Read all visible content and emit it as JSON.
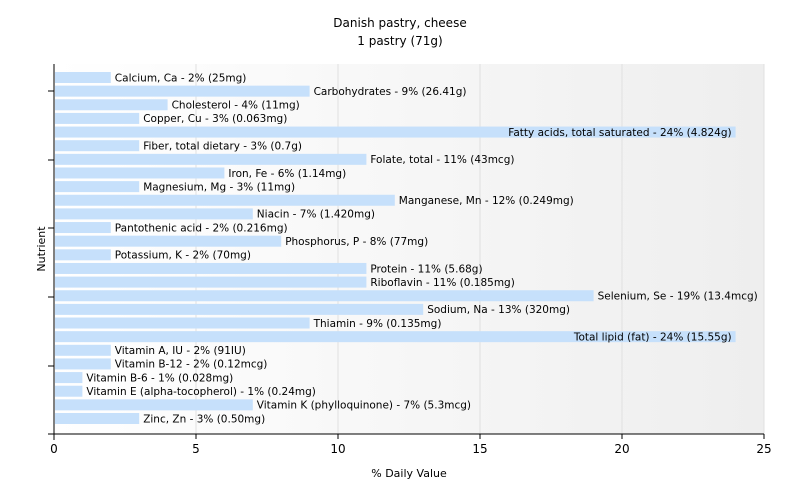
{
  "chart_data": {
    "type": "bar",
    "orientation": "horizontal",
    "title": "Danish pastry, cheese",
    "subtitle": "1 pastry (71g)",
    "xlabel": "% Daily Value",
    "ylabel": "Nutrient",
    "xlim": [
      0,
      25
    ],
    "xticks": [
      0,
      5,
      10,
      15,
      20,
      25
    ],
    "grid": true,
    "bar_color": "#c6e0fb",
    "categories": [
      "Calcium, Ca",
      "Carbohydrates",
      "Cholesterol",
      "Copper, Cu",
      "Fatty acids, total saturated",
      "Fiber, total dietary",
      "Folate, total",
      "Iron, Fe",
      "Magnesium, Mg",
      "Manganese, Mn",
      "Niacin",
      "Pantothenic acid",
      "Phosphorus, P",
      "Potassium, K",
      "Protein",
      "Riboflavin",
      "Selenium, Se",
      "Sodium, Na",
      "Thiamin",
      "Total lipid (fat)",
      "Vitamin A, IU",
      "Vitamin B-12",
      "Vitamin B-6",
      "Vitamin E (alpha-tocopherol)",
      "Vitamin K (phylloquinone)",
      "Zinc, Zn"
    ],
    "values": [
      2,
      9,
      4,
      3,
      24,
      3,
      11,
      6,
      3,
      12,
      7,
      2,
      8,
      2,
      11,
      11,
      19,
      13,
      9,
      24,
      2,
      2,
      1,
      1,
      7,
      3
    ],
    "labels": [
      "Calcium, Ca - 2% (25mg)",
      "Carbohydrates - 9% (26.41g)",
      "Cholesterol - 4% (11mg)",
      "Copper, Cu - 3% (0.063mg)",
      "Fatty acids, total saturated - 24% (4.824g)",
      "Fiber, total dietary - 3% (0.7g)",
      "Folate, total - 11% (43mcg)",
      "Iron, Fe - 6% (1.14mg)",
      "Magnesium, Mg - 3% (11mg)",
      "Manganese, Mn - 12% (0.249mg)",
      "Niacin - 7% (1.420mg)",
      "Pantothenic acid - 2% (0.216mg)",
      "Phosphorus, P - 8% (77mg)",
      "Potassium, K - 2% (70mg)",
      "Protein - 11% (5.68g)",
      "Riboflavin - 11% (0.185mg)",
      "Selenium, Se - 19% (13.4mcg)",
      "Sodium, Na - 13% (320mg)",
      "Thiamin - 9% (0.135mg)",
      "Total lipid (fat) - 24% (15.55g)",
      "Vitamin A, IU - 2% (91IU)",
      "Vitamin B-12 - 2% (0.12mcg)",
      "Vitamin B-6 - 1% (0.028mg)",
      "Vitamin E (alpha-tocopherol) - 1% (0.24mg)",
      "Vitamin K (phylloquinone) - 7% (5.3mcg)",
      "Zinc, Zn - 3% (0.50mg)"
    ]
  }
}
